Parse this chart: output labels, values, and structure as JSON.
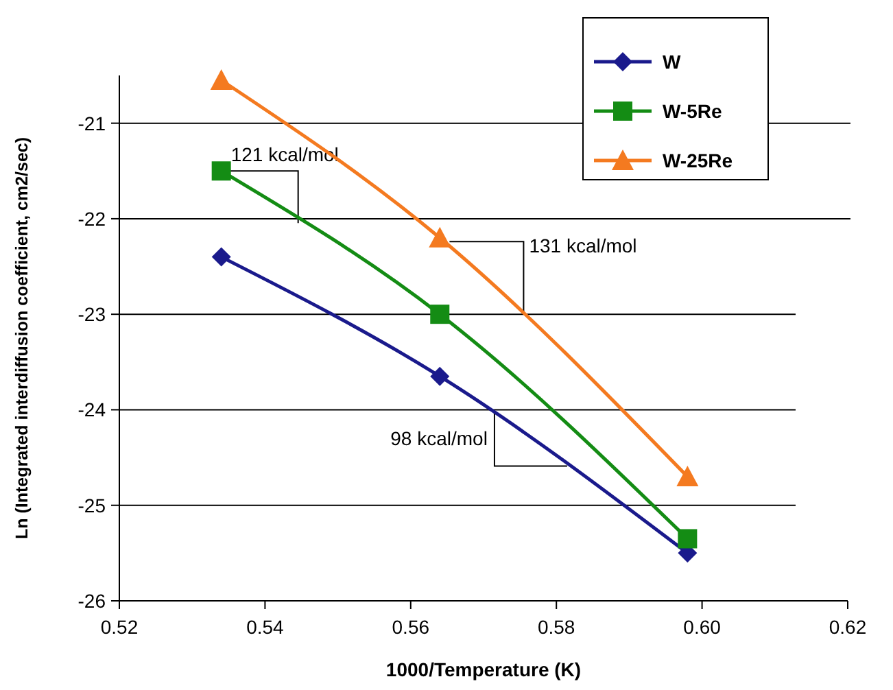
{
  "chart_data": {
    "type": "line",
    "xlabel": "1000/Temperature (K)",
    "ylabel": "Ln (Integrated interdiffusion coefficient, cm2/sec)",
    "x": [
      0.534,
      0.564,
      0.598
    ],
    "series": [
      {
        "name": "W",
        "color": "#1a1a8c",
        "marker": "diamond",
        "values": [
          -22.4,
          -23.65,
          -25.5
        ]
      },
      {
        "name": "W-5Re",
        "color": "#148c14",
        "marker": "square",
        "values": [
          -21.5,
          -23.0,
          -25.35
        ]
      },
      {
        "name": "W-25Re",
        "color": "#f47a20",
        "marker": "triangle",
        "values": [
          -20.55,
          -22.2,
          -24.7
        ]
      }
    ],
    "xlim": [
      0.52,
      0.62
    ],
    "xticks": [
      {
        "value": 0.52,
        "label": "0.52"
      },
      {
        "value": 0.54,
        "label": "0.54"
      },
      {
        "value": 0.56,
        "label": "0.56"
      },
      {
        "value": 0.58,
        "label": "0.58"
      },
      {
        "value": 0.6,
        "label": "0.60"
      },
      {
        "value": 0.62,
        "label": "0.62"
      }
    ],
    "ylim": [
      -26,
      -20.5
    ],
    "yticks": [
      -26,
      -25,
      -24,
      -23,
      -22,
      -21
    ],
    "grid": "y",
    "legend": "top right",
    "annotations": [
      {
        "text": "121 kcal/mol",
        "x": 0.534,
        "y": -21.5
      },
      {
        "text": "131 kcal/mol",
        "x": 0.5755,
        "y": -23.0
      },
      {
        "text": "98 kcal/mol",
        "x": 0.5715,
        "y": -24.0
      }
    ]
  }
}
